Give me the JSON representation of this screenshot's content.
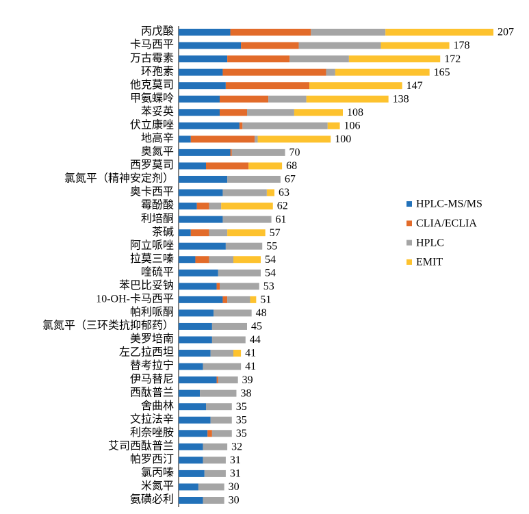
{
  "chart_data": {
    "type": "stacked-bar-horizontal",
    "categories": [
      "丙戊酸",
      "卡马西平",
      "万古霉素",
      "环孢素",
      "他克莫司",
      "甲氨蝶呤",
      "苯妥英",
      "伏立康唑",
      "地高辛",
      "奥氮平",
      "西罗莫司",
      "氯氮平（精神安定剂）",
      "奥卡西平",
      "霉酚酸",
      "利培酮",
      "茶碱",
      "阿立哌唑",
      "拉莫三嗪",
      "喹硫平",
      "苯巴比妥钠",
      "10-OH-卡马西平",
      "帕利哌酮",
      "氯氮平（三环类抗抑郁药）",
      "美罗培南",
      "左乙拉西坦",
      "替考拉宁",
      "伊马替尼",
      "西酞普兰",
      "舍曲林",
      "文拉法辛",
      "利奈唑胺",
      "艾司西酞普兰",
      "帕罗西汀",
      "氯丙嗪",
      "米氮平",
      "氨磺必利"
    ],
    "series": [
      {
        "name": "HPLC-MS/MS",
        "color": "#2271b9",
        "values": [
          34,
          41,
          32,
          29,
          31,
          27,
          27,
          40,
          8,
          34,
          18,
          32,
          29,
          12,
          29,
          8,
          31,
          11,
          26,
          25,
          29,
          23,
          22,
          22,
          21,
          16,
          25,
          14,
          18,
          21,
          19,
          16,
          16,
          17,
          13,
          16
        ]
      },
      {
        "name": "CLIA/ECLIA",
        "color": "#e26b2a",
        "values": [
          53,
          38,
          41,
          68,
          55,
          32,
          18,
          2,
          42,
          1,
          28,
          0,
          0,
          8,
          0,
          12,
          0,
          9,
          0,
          2,
          3,
          0,
          0,
          0,
          0,
          0,
          1,
          0,
          0,
          0,
          3,
          0,
          0,
          0,
          0,
          0
        ]
      },
      {
        "name": "HPLC",
        "color": "#a5a5a5",
        "values": [
          49,
          54,
          39,
          6,
          0,
          25,
          31,
          56,
          2,
          35,
          0,
          35,
          29,
          8,
          32,
          12,
          24,
          16,
          28,
          26,
          15,
          25,
          23,
          22,
          15,
          25,
          13,
          24,
          17,
          14,
          13,
          16,
          15,
          14,
          17,
          14
        ]
      },
      {
        "name": "EMIT",
        "color": "#fdc22e",
        "values": [
          71,
          45,
          60,
          62,
          61,
          54,
          32,
          8,
          48,
          0,
          22,
          0,
          5,
          34,
          0,
          25,
          0,
          18,
          0,
          0,
          4,
          0,
          0,
          0,
          5,
          0,
          0,
          0,
          0,
          0,
          0,
          0,
          0,
          0,
          0,
          0
        ]
      }
    ],
    "totals": [
      207,
      178,
      172,
      165,
      147,
      138,
      108,
      106,
      100,
      70,
      68,
      67,
      63,
      62,
      61,
      57,
      55,
      54,
      54,
      53,
      51,
      48,
      45,
      44,
      41,
      41,
      39,
      38,
      35,
      35,
      35,
      32,
      31,
      31,
      30,
      30
    ],
    "legend": "right"
  }
}
